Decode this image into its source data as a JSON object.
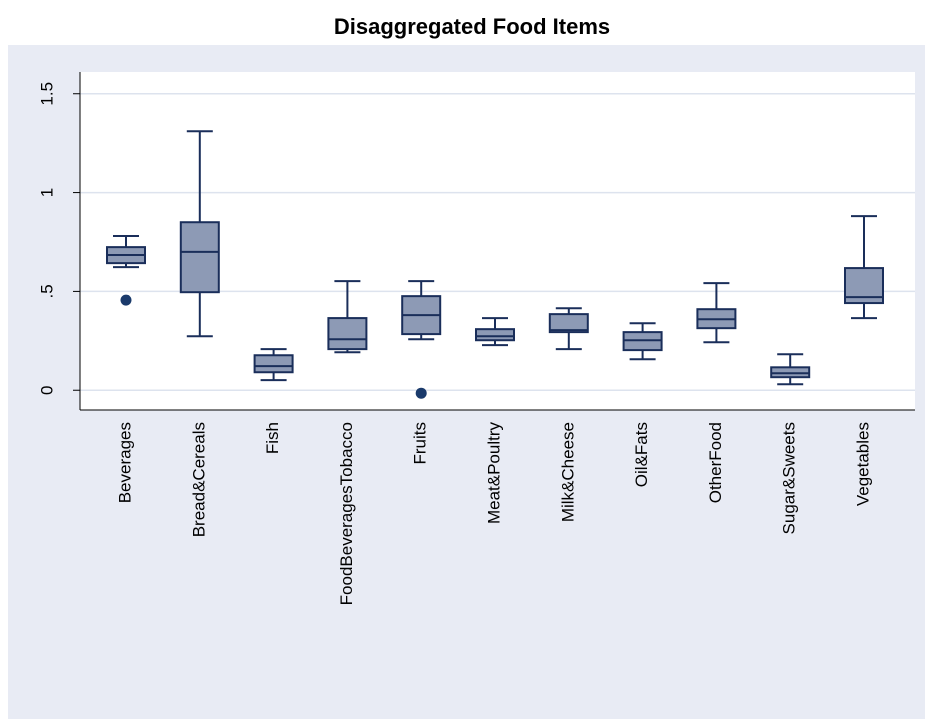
{
  "chart_data": {
    "type": "box",
    "title": "Disaggregated Food Items",
    "categories": [
      "Beverages",
      "Bread&Cereals",
      "Fish",
      "FoodBeveragesTobacco",
      "Fruits",
      "Meat&Poultry",
      "Milk&Cheese",
      "Oil&Fats",
      "OtherFood",
      "Sugar&Sweets",
      "Vegetables"
    ],
    "boxes": [
      {
        "whisker_low": 0.623,
        "q1": 0.643,
        "median": 0.684,
        "q3": 0.724,
        "whisker_high": 0.78,
        "outliers": [
          0.456
        ]
      },
      {
        "whisker_low": 0.273,
        "q1": 0.496,
        "median": 0.7,
        "q3": 0.85,
        "whisker_high": 1.31,
        "outliers": []
      },
      {
        "whisker_low": 0.051,
        "q1": 0.091,
        "median": 0.122,
        "q3": 0.177,
        "whisker_high": 0.208,
        "outliers": []
      },
      {
        "whisker_low": 0.192,
        "q1": 0.208,
        "median": 0.258,
        "q3": 0.365,
        "whisker_high": 0.552,
        "outliers": []
      },
      {
        "whisker_low": 0.258,
        "q1": 0.284,
        "median": 0.38,
        "q3": 0.476,
        "whisker_high": 0.552,
        "outliers": [
          -0.015
        ]
      },
      {
        "whisker_low": 0.228,
        "q1": 0.253,
        "median": 0.273,
        "q3": 0.309,
        "whisker_high": 0.365,
        "outliers": []
      },
      {
        "whisker_low": 0.208,
        "q1": 0.294,
        "median": 0.304,
        "q3": 0.385,
        "whisker_high": 0.415,
        "outliers": []
      },
      {
        "whisker_low": 0.157,
        "q1": 0.203,
        "median": 0.253,
        "q3": 0.294,
        "whisker_high": 0.339,
        "outliers": []
      },
      {
        "whisker_low": 0.243,
        "q1": 0.314,
        "median": 0.359,
        "q3": 0.41,
        "whisker_high": 0.542,
        "outliers": []
      },
      {
        "whisker_low": 0.03,
        "q1": 0.066,
        "median": 0.086,
        "q3": 0.116,
        "whisker_high": 0.182,
        "outliers": []
      },
      {
        "whisker_low": 0.365,
        "q1": 0.441,
        "median": 0.471,
        "q3": 0.618,
        "whisker_high": 0.881,
        "outliers": []
      }
    ],
    "color": "#8d9ab5",
    "line_color": "#1a2e5a",
    "outlier_color": "#1a3a6b",
    "ylim": [
      -0.1,
      1.61
    ],
    "yticks": [
      0,
      {
        "value": 0.5,
        "label": ".5"
      },
      1,
      1.5
    ],
    "grid": true
  }
}
